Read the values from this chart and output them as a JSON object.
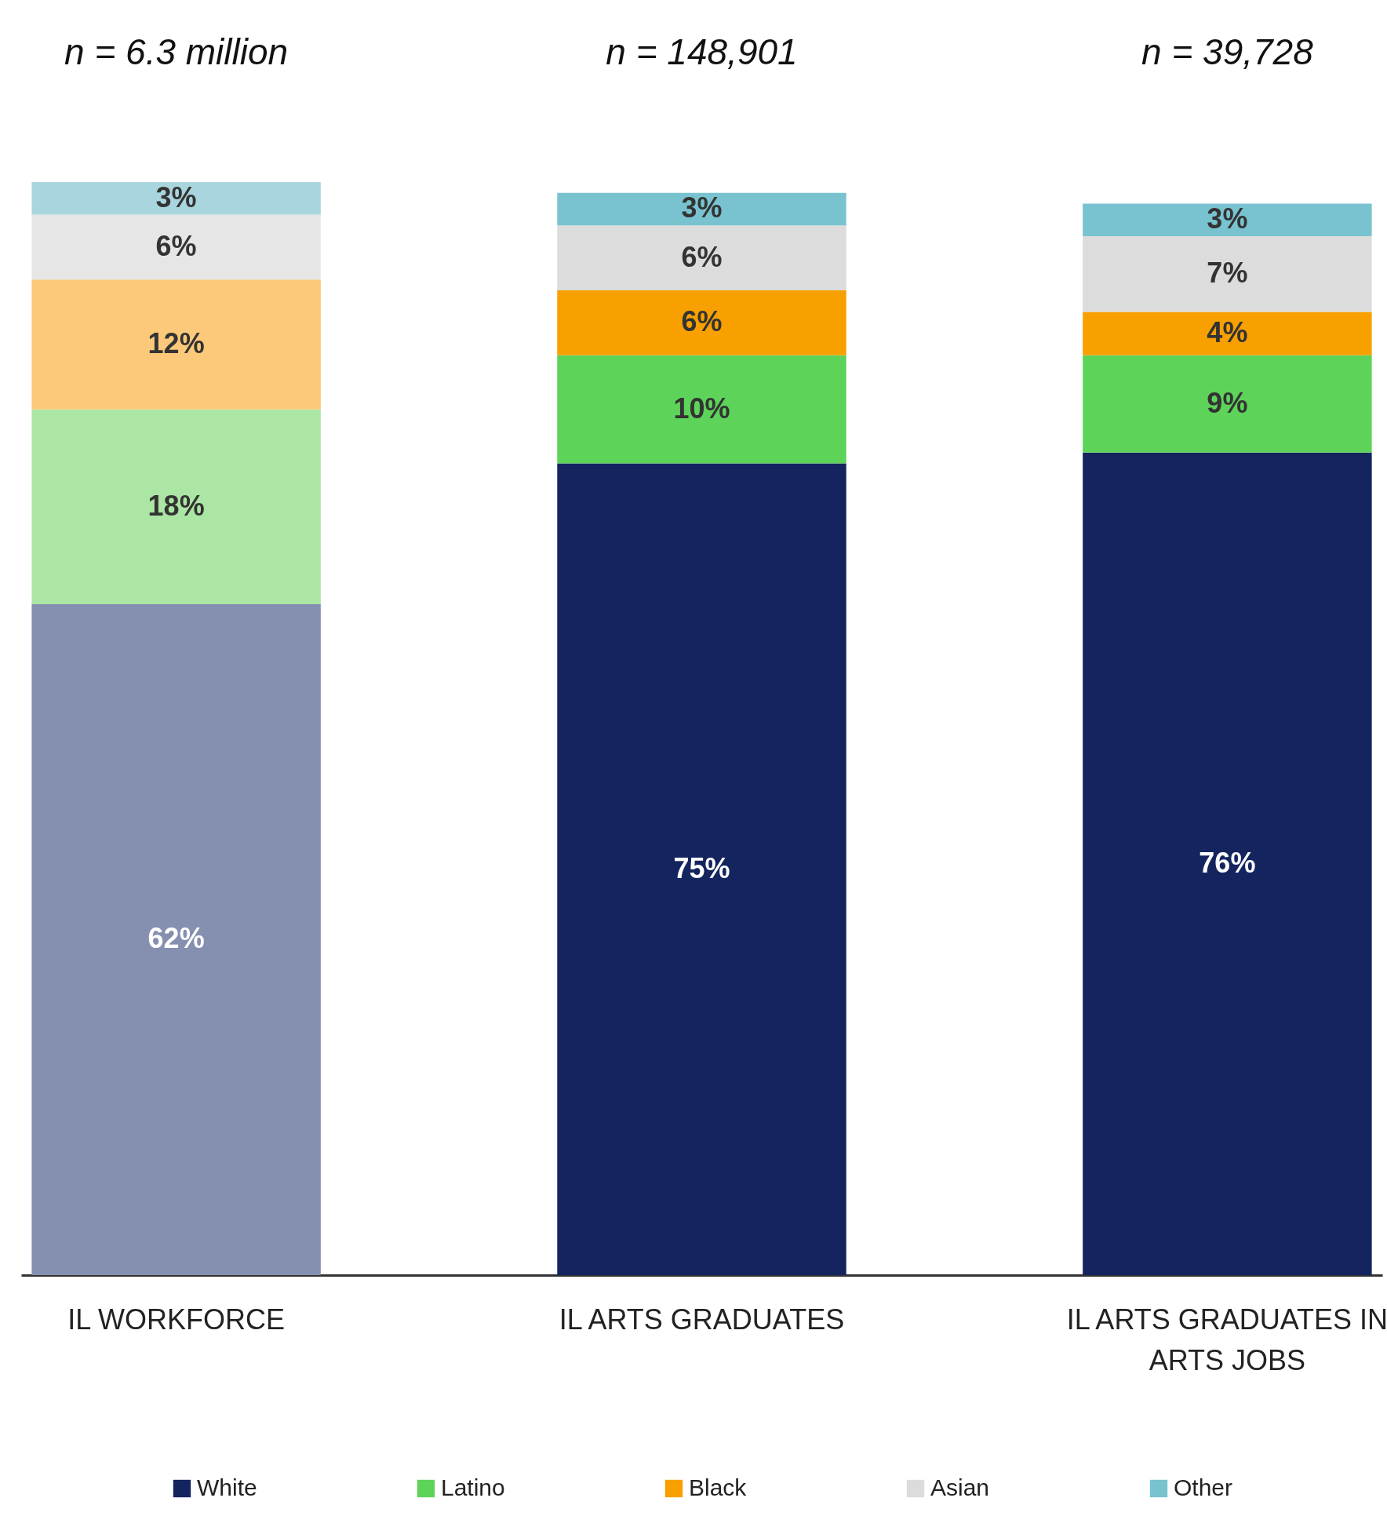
{
  "chart_data": {
    "type": "bar",
    "stacked": true,
    "legend": "bottom",
    "categories": [
      "IL WORKFORCE",
      "IL ARTS GRADUATES",
      "IL ARTS GRADUATES IN ARTS JOBS"
    ],
    "annotations": [
      "n = 6.3 million",
      "n = 148,901",
      "n = 39,728"
    ],
    "series": [
      {
        "name": "White",
        "color": "#14245f",
        "colors": [
          "#8590b0",
          "#14245f",
          "#14245f"
        ],
        "values": [
          62,
          75,
          76
        ],
        "value_labels": [
          "62%",
          "75%",
          "76%"
        ]
      },
      {
        "name": "Latino",
        "color": "#5dd35a",
        "colors": [
          "#abe6a4",
          "#5dd35a",
          "#5dd35a"
        ],
        "values": [
          18,
          10,
          9
        ],
        "value_labels": [
          "18%",
          "10%",
          "9%"
        ]
      },
      {
        "name": "Black",
        "color": "#f7a000",
        "colors": [
          "#fcc97a",
          "#f7a000",
          "#f7a000"
        ],
        "values": [
          12,
          6,
          4
        ],
        "value_labels": [
          "12%",
          "6%",
          "4%"
        ]
      },
      {
        "name": "Asian",
        "color": "#dcdcdc",
        "colors": [
          "#e6e6e6",
          "#dcdcdc",
          "#dcdcdc"
        ],
        "values": [
          6,
          6,
          7
        ],
        "value_labels": [
          "6%",
          "6%",
          "7%"
        ]
      },
      {
        "name": "Other",
        "color": "#79c3d0",
        "colors": [
          "#a9d6de",
          "#79c3d0",
          "#79c3d0"
        ],
        "values": [
          3,
          3,
          3
        ],
        "value_labels": [
          "3%",
          "3%",
          "3%"
        ]
      }
    ]
  }
}
